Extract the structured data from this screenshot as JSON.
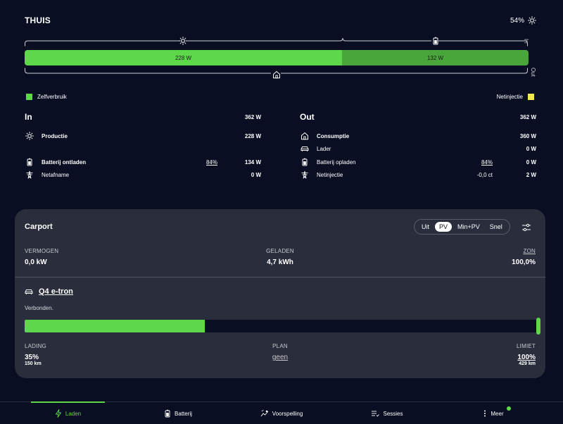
{
  "header": {
    "title": "THUIS",
    "soc": "54%",
    "soc_icon": "sun-icon"
  },
  "energy_bar": {
    "in_label": "In",
    "out_label": "Out",
    "segments": [
      {
        "label": "228 W",
        "fraction": 0.63,
        "color": "#5dd84b"
      },
      {
        "label": "132 W",
        "fraction": 0.37,
        "color": "#49a63a"
      }
    ],
    "top_icons": [
      "sun-icon",
      "battery-icon"
    ],
    "bottom_icon": "home-icon"
  },
  "legend": {
    "left": {
      "label": "Zelfverbruik",
      "color": "#5dd84b"
    },
    "right": {
      "label": "Netinjectie",
      "color": "#f3e84a"
    }
  },
  "in": {
    "title": "In",
    "total": "362 W",
    "rows": [
      {
        "label": "Productie",
        "extra": "",
        "value": "228 W",
        "icon": "sun-icon"
      },
      {
        "label": "Batterij ontladen",
        "extra": "84%",
        "value": "134 W",
        "icon": "battery-icon"
      },
      {
        "label": "Netafname",
        "extra": "",
        "value": "0 W",
        "icon": "power-tower-icon"
      }
    ]
  },
  "out": {
    "title": "Out",
    "total": "362 W",
    "rows": [
      {
        "label": "Consumptie",
        "extra": "",
        "value": "360 W",
        "icon": "home-icon"
      },
      {
        "label": "Lader",
        "extra": "",
        "value": "0 W",
        "icon": "car-icon"
      },
      {
        "label": "Batterij opladen",
        "extra": "84%",
        "value": "0 W",
        "icon": "battery-icon"
      },
      {
        "label": "Netinjectie",
        "extra": "-0,0 ct",
        "value": "2 W",
        "icon": "power-tower-icon"
      }
    ]
  },
  "carport": {
    "title": "Carport",
    "modes": [
      "Uit",
      "PV",
      "Min+PV",
      "Snel"
    ],
    "active_mode": "PV",
    "stats": [
      {
        "label": "VERMOGEN",
        "value": "0,0 kW"
      },
      {
        "label": "GELADEN",
        "value": "4,7 kWh"
      },
      {
        "label": "ZON",
        "value": "100,0%"
      }
    ],
    "vehicle": {
      "name": "Q4 e-tron",
      "status": "Verbonden.",
      "soc_fraction": 0.35,
      "limit_fraction": 1.0
    },
    "charge_stats": {
      "lading_label": "LADING",
      "lading_value": "35%",
      "lading_range": "150 km",
      "plan_label": "PLAN",
      "plan_value": "geen",
      "limiet_label": "LIMIET",
      "limiet_value": "100%",
      "limiet_range": "429 km"
    }
  },
  "nav": {
    "items": [
      {
        "label": "Laden",
        "icon": "bolt-icon",
        "active": true
      },
      {
        "label": "Batterij",
        "icon": "battery-icon",
        "active": false
      },
      {
        "label": "Voorspelling",
        "icon": "forecast-icon",
        "active": false
      },
      {
        "label": "Sessies",
        "icon": "list-icon",
        "active": false
      },
      {
        "label": "Meer",
        "icon": "more-icon",
        "active": false
      }
    ]
  }
}
